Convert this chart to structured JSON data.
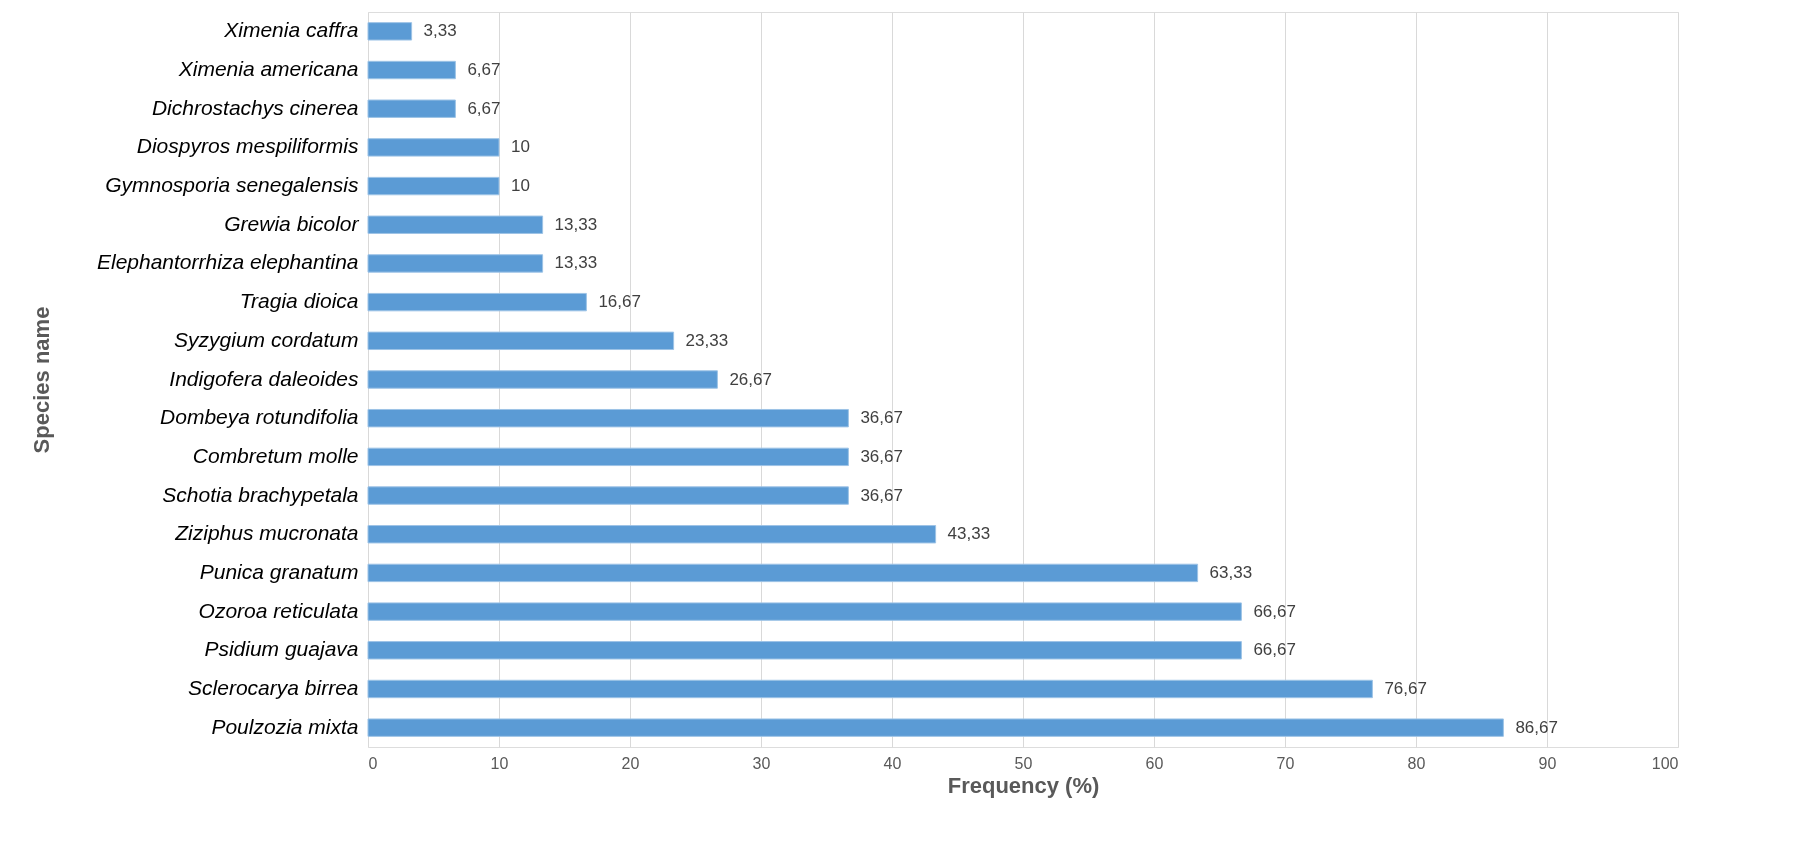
{
  "chart_data": {
    "type": "bar",
    "orientation": "horizontal",
    "xlabel": "Frequency (%)",
    "ylabel": "Species name",
    "categories": [
      "Ximenia caffra",
      "Ximenia americana",
      "Dichrostachys cinerea",
      "Diospyros mespiliformis",
      "Gymnosporia senegalensis",
      "Grewia bicolor",
      "Elephantorrhiza elephantina",
      "Tragia dioica",
      "Syzygium cordatum",
      "Indigofera daleoides",
      "Dombeya rotundifolia",
      "Combretum molle",
      "Schotia brachypetala",
      "Ziziphus mucronata",
      "Punica granatum",
      "Ozoroa reticulata",
      "Psidium guajava",
      "Sclerocarya birrea",
      "Poulzozia mixta"
    ],
    "values": [
      3.33,
      6.67,
      6.67,
      10,
      10,
      13.33,
      13.33,
      16.67,
      23.33,
      26.67,
      36.67,
      36.67,
      36.67,
      43.33,
      63.33,
      66.67,
      66.67,
      76.67,
      86.67
    ],
    "value_labels": [
      "3,33",
      "6,67",
      "6,67",
      "10",
      "10",
      "13,33",
      "13,33",
      "16,67",
      "23,33",
      "26,67",
      "36,67",
      "36,67",
      "36,67",
      "43,33",
      "63,33",
      "66,67",
      "66,67",
      "76,67",
      "86,67"
    ],
    "color": "#5b9bd5",
    "xlim": [
      0,
      100
    ],
    "xticks": [
      0,
      10,
      20,
      30,
      40,
      50,
      60,
      70,
      80,
      90,
      100
    ],
    "grid": "x"
  }
}
